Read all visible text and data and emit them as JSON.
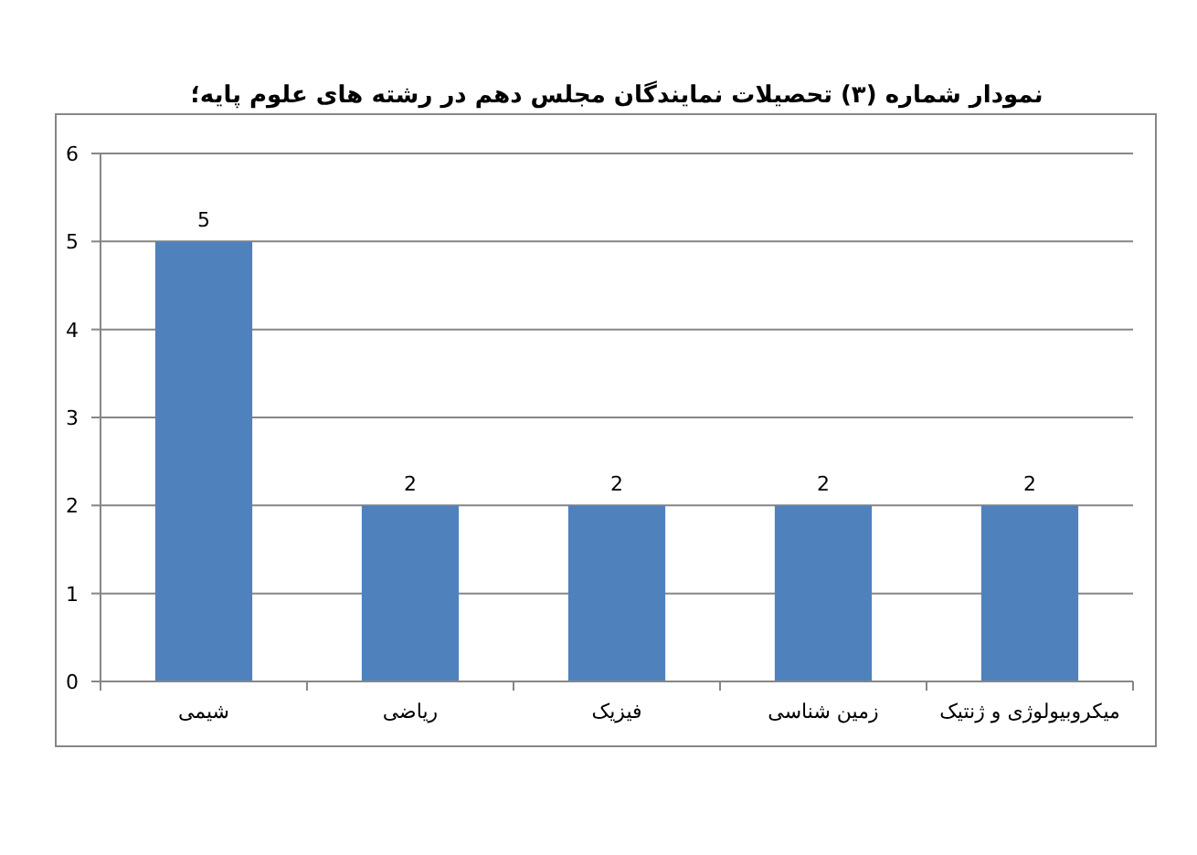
{
  "chart_data": {
    "type": "bar",
    "title": "نمودار شماره (۳) تحصیلات نمایندگان مجلس دهم در رشته های علوم پایه؛",
    "categories": [
      "شیمی",
      "ریاضی",
      "فیزیک",
      "زمین شناسی",
      "میکروبیولوژی و ژنتیک"
    ],
    "values": [
      5,
      2,
      2,
      2,
      2
    ],
    "color": "#4f81bd",
    "ylim": [
      0,
      6
    ],
    "yticks": [
      0,
      1,
      2,
      3,
      4,
      5,
      6
    ],
    "grid": "y",
    "data_labels": true
  }
}
